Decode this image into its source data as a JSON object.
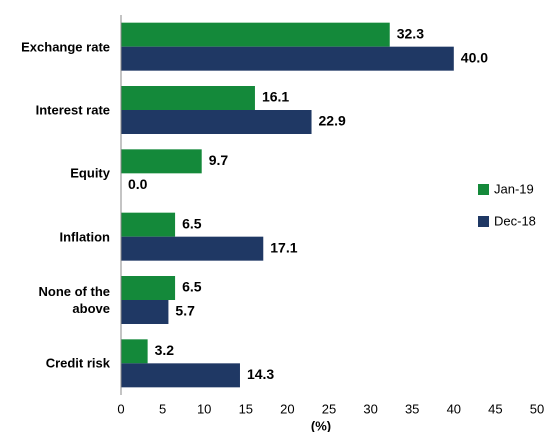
{
  "chart_data": {
    "type": "bar",
    "orientation": "horizontal",
    "categories": [
      "Exchange rate",
      "Interest rate",
      "Equity",
      "Inflation",
      "None of the above",
      "Credit risk"
    ],
    "series": [
      {
        "name": "Jan-19",
        "color": "#14893a",
        "values": [
          32.3,
          16.1,
          9.7,
          6.5,
          6.5,
          3.2
        ]
      },
      {
        "name": "Dec-18",
        "color": "#1f3864",
        "values": [
          40.0,
          22.9,
          0.0,
          17.1,
          5.7,
          14.3
        ],
        "value_labels": [
          "40.0",
          "22.9",
          "0.0",
          "17.1",
          "5.7",
          "14.3"
        ]
      }
    ],
    "xlabel": "(%)",
    "xlim": [
      0,
      50
    ],
    "xticks": [
      0,
      5,
      10,
      15,
      20,
      25,
      30,
      35,
      40,
      45,
      50
    ],
    "legend": "right"
  }
}
